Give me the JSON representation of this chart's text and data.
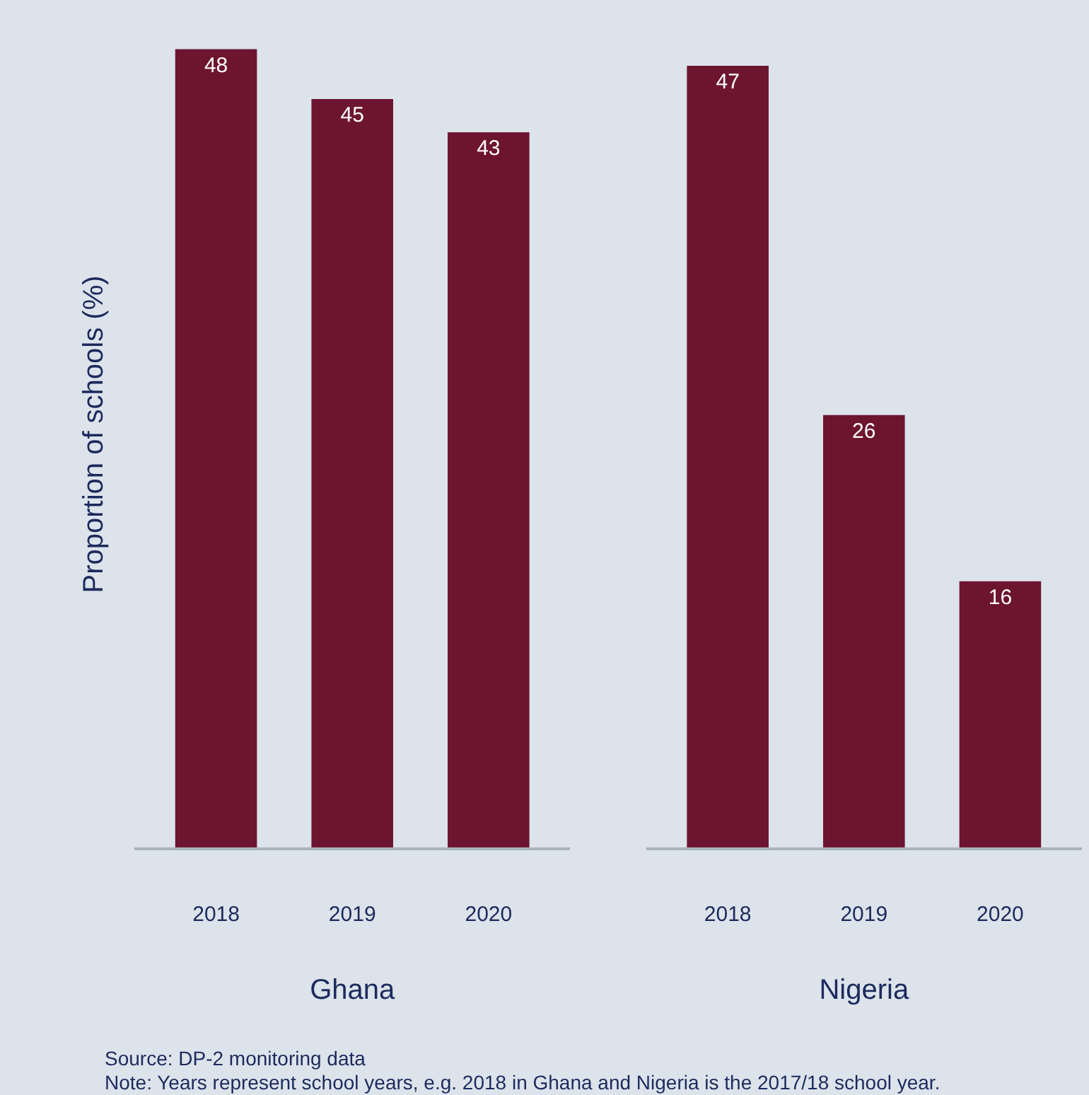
{
  "chart_data": [
    {
      "type": "bar",
      "ylabel": "Proportion of schools (%)",
      "xlabel": "Ghana",
      "categories": [
        "2018",
        "2019",
        "2020"
      ],
      "series": [
        {
          "color": "#6d1530",
          "values": [
            48,
            45,
            43
          ]
        }
      ],
      "data_labels": true,
      "grid": false,
      "tick_labels": "x",
      "annotations": [
        "Source: DP-2 monitoring data",
        "Note: Years represent school years, e.g. 2018 in Ghana and Nigeria is the 2017/18 school year."
      ]
    },
    {
      "type": "bar",
      "xlabel": "Nigeria",
      "categories": [
        "2018",
        "2019",
        "2020"
      ],
      "series": [
        {
          "color": "#6d1530",
          "values": [
            47,
            26,
            16
          ]
        }
      ],
      "data_labels": true,
      "grid": false,
      "tick_labels": "x"
    }
  ]
}
